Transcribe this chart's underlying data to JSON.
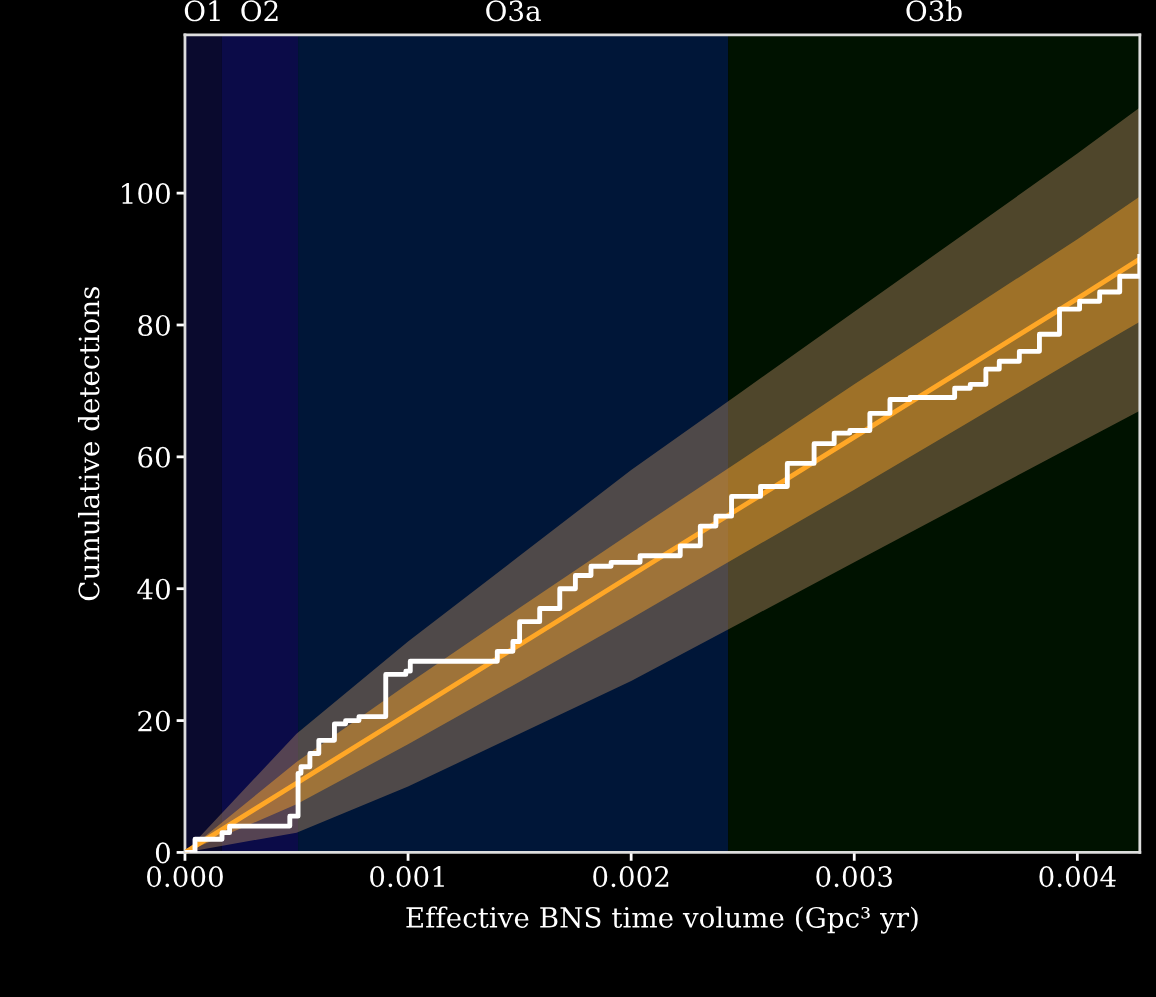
{
  "chart_data": {
    "type": "line",
    "xlabel": "Effective BNS time volume (Gpc³ yr)",
    "ylabel": "Cumulative detections",
    "xlim": [
      0,
      0.00428
    ],
    "ylim": [
      0,
      124
    ],
    "xticks": [
      {
        "value": 0,
        "label": "0.000"
      },
      {
        "value": 0.001,
        "label": "0.001"
      },
      {
        "value": 0.002,
        "label": "0.002"
      },
      {
        "value": 0.003,
        "label": "0.003"
      },
      {
        "value": 0.004,
        "label": "0.004"
      }
    ],
    "yticks": [
      0,
      20,
      40,
      60,
      80,
      100
    ],
    "grid": false,
    "legend": false,
    "bands": [
      {
        "axis": "x",
        "from": 0,
        "to": 0.000166,
        "label": "O1",
        "color": "#0a0a2e"
      },
      {
        "axis": "x",
        "from": 0.000166,
        "to": 0.000507,
        "label": "O2",
        "color": "#0b0b48"
      },
      {
        "axis": "x",
        "from": 0.000507,
        "to": 0.002435,
        "label": "O3a",
        "color": "#001638"
      },
      {
        "axis": "x",
        "from": 0.002435,
        "to": 0.00428,
        "label": "O3b",
        "color": "#001200"
      }
    ],
    "series": [
      {
        "color": "#b08860",
        "x": [
          0,
          0.0005,
          0.001,
          0.0015,
          0.002,
          0.0025,
          0.003,
          0.0035,
          0.004,
          0.00428
        ],
        "values": [
          null,
          null,
          null,
          null,
          null,
          null,
          null,
          null,
          null,
          null
        ],
        "lower": [
          0,
          3,
          10,
          18,
          26,
          35,
          44,
          53,
          62,
          67
        ],
        "upper": [
          0,
          18,
          32,
          45,
          58,
          70,
          82,
          94,
          106,
          113
        ]
      },
      {
        "color": "#ffa726",
        "x": [
          0,
          0.0005,
          0.001,
          0.0015,
          0.002,
          0.0025,
          0.003,
          0.0035,
          0.004,
          0.00428
        ],
        "values": [
          0,
          10.5,
          21,
          31.5,
          42,
          52.5,
          63,
          73.5,
          84,
          90
        ],
        "lower": [
          0,
          7.3,
          16.4,
          25.9,
          35.5,
          45.3,
          55,
          65,
          75,
          80.5
        ],
        "upper": [
          0,
          13.7,
          25.6,
          37.1,
          48.5,
          59.7,
          71,
          82,
          93,
          99.5
        ]
      },
      {
        "type": "step",
        "color": "#ffffff",
        "x": [
          0,
          4.5e-05,
          0.000166,
          0.0002,
          0.00047,
          0.000507,
          0.00052,
          0.00056,
          0.0006,
          0.00067,
          0.00072,
          0.00078,
          0.0009,
          0.00099,
          0.00101,
          0.00111,
          0.0014,
          0.00144,
          0.00147,
          0.0015,
          0.00159,
          0.00168,
          0.00175,
          0.00182,
          0.00191,
          0.00204,
          0.00222,
          0.00231,
          0.00238,
          0.00245,
          0.00258,
          0.0027,
          0.00276,
          0.00282,
          0.00291,
          0.00298,
          0.00307,
          0.00316,
          0.00325,
          0.00345,
          0.00352,
          0.00359,
          0.00365,
          0.00374,
          0.00383,
          0.00392,
          0.00401,
          0.0041,
          0.00419,
          0.00428
        ],
        "values": [
          0,
          2,
          3,
          4,
          5.5,
          12,
          13,
          15,
          17,
          19.5,
          20,
          20.6,
          27,
          27.5,
          29,
          29,
          30.5,
          30.5,
          32,
          35,
          37,
          40,
          42,
          43.4,
          44,
          45,
          46.5,
          49.5,
          51,
          54,
          55.5,
          59,
          59,
          62,
          63.6,
          64,
          66.6,
          68.7,
          69,
          70.4,
          71,
          73.3,
          74.5,
          76,
          78.6,
          82.4,
          83.6,
          85,
          87.4,
          90.4
        ]
      }
    ]
  }
}
